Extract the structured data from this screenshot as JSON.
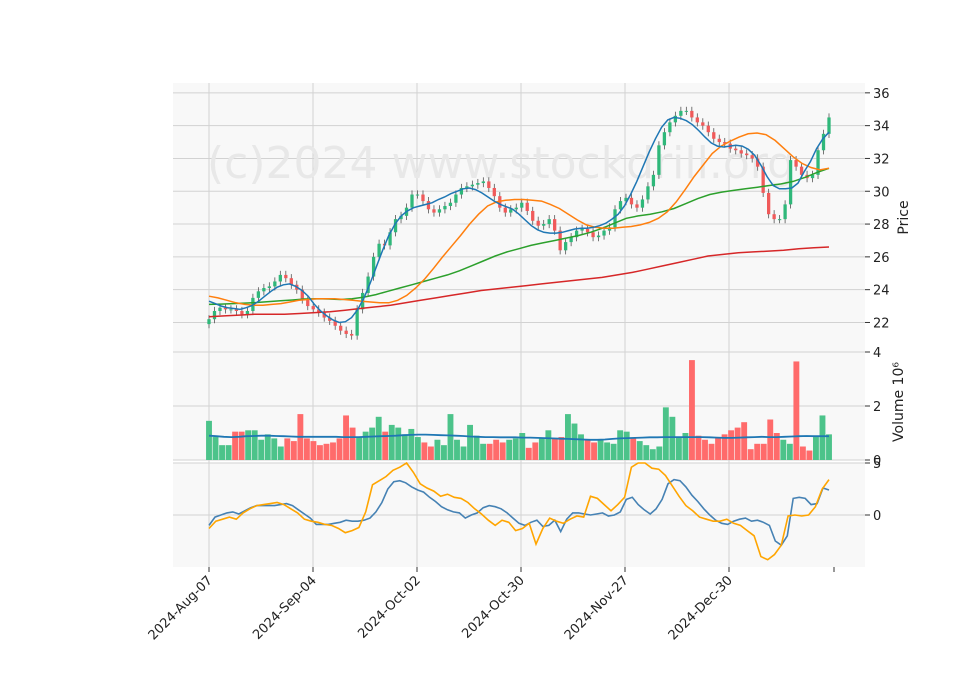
{
  "watermark": "(c)2024 www.stockdrill.org",
  "colors": {
    "panel_bg": "#f8f8f8",
    "grid": "#d2d2d2",
    "up": "#2fb87a",
    "down": "#f05a5a",
    "up_vol": "#4cc38a",
    "down_vol": "#ff6b6b",
    "ma_blue": "#1f77b4",
    "ma_orange": "#ff7f0e",
    "ma_green": "#2ca02c",
    "ma_red": "#d62728",
    "vol_avg": "#1f77b4",
    "osc_blue": "#4682b4",
    "osc_orange": "#ffa500"
  },
  "chart_data": {
    "type": "candlestick",
    "x_tick_labels": [
      "2024-Aug-07",
      "2024-Sep-04",
      "2024-Oct-02",
      "2024-Oct-30",
      "2024-Nov-27",
      "2024-Dec-30"
    ],
    "price_panel": {
      "ylabel": "Price",
      "yticks": [
        22,
        24,
        26,
        28,
        30,
        32,
        34,
        36
      ],
      "ylim": [
        20.2,
        36.6
      ],
      "close": [
        22.2,
        22.7,
        22.9,
        22.8,
        22.8,
        22.7,
        22.5,
        22.7,
        23.5,
        23.9,
        24.1,
        24.2,
        24.5,
        24.9,
        24.7,
        24.3,
        24.0,
        23.4,
        23.0,
        22.8,
        22.6,
        22.3,
        22.1,
        21.8,
        21.5,
        21.3,
        21.2,
        22.8,
        23.8,
        24.8,
        26.0,
        26.8,
        26.7,
        27.5,
        28.3,
        28.5,
        29.0,
        29.8,
        29.8,
        29.4,
        28.9,
        28.7,
        28.9,
        29.1,
        29.3,
        29.8,
        30.2,
        30.3,
        30.4,
        30.5,
        30.6,
        30.2,
        29.7,
        29.0,
        28.7,
        28.9,
        29.0,
        29.3,
        28.8,
        28.2,
        27.9,
        28.0,
        28.3,
        27.6,
        26.4,
        26.9,
        27.2,
        27.6,
        27.7,
        27.5,
        27.2,
        27.3,
        27.6,
        27.8,
        28.9,
        29.4,
        29.6,
        29.2,
        29.0,
        29.5,
        30.3,
        31.0,
        32.8,
        33.6,
        34.2,
        34.6,
        34.9,
        34.9,
        34.5,
        34.2,
        34.0,
        33.6,
        33.2,
        33.0,
        32.9,
        32.6,
        32.5,
        32.3,
        32.2,
        32.0,
        31.5,
        29.9,
        28.6,
        28.3,
        28.3,
        29.2,
        31.9,
        31.5,
        31.0,
        30.8,
        31.0,
        32.5,
        33.5,
        34.5
      ],
      "ma_blue": [
        23.3,
        23.15,
        23.0,
        22.9,
        22.85,
        22.8,
        22.9,
        23.05,
        23.3,
        23.6,
        23.9,
        24.15,
        24.3,
        24.35,
        24.2,
        23.95,
        23.6,
        23.1,
        22.7,
        22.4,
        22.15,
        22.0,
        22.05,
        22.3,
        22.8,
        23.5,
        24.4,
        25.4,
        26.4,
        27.3,
        28.0,
        28.5,
        28.8,
        29.0,
        29.1,
        29.2,
        29.3,
        29.5,
        29.65,
        29.85,
        30.0,
        30.15,
        30.2,
        30.1,
        29.9,
        29.65,
        29.4,
        29.2,
        29.05,
        28.9,
        28.6,
        28.25,
        27.9,
        27.65,
        27.5,
        27.45,
        27.45,
        27.5,
        27.6,
        27.7,
        27.75,
        27.75,
        27.8,
        27.9,
        28.05,
        28.3,
        28.6,
        29.1,
        29.8,
        30.6,
        31.5,
        32.4,
        33.2,
        33.9,
        34.35,
        34.5,
        34.45,
        34.3,
        34.05,
        33.7,
        33.3,
        32.95,
        32.75,
        32.7,
        32.75,
        32.8,
        32.75,
        32.55,
        32.2,
        31.6,
        30.9,
        30.35,
        30.15,
        30.15,
        30.2,
        30.5,
        31.2,
        31.8,
        32.6,
        33.2,
        33.6
      ],
      "ma_orange": [
        23.6,
        23.5,
        23.35,
        23.2,
        23.1,
        23.05,
        23.05,
        23.1,
        23.15,
        23.25,
        23.35,
        23.4,
        23.45,
        23.45,
        23.45,
        23.4,
        23.35,
        23.3,
        23.25,
        23.2,
        23.2,
        23.35,
        23.65,
        24.1,
        24.65,
        25.3,
        26.0,
        26.65,
        27.3,
        28.0,
        28.6,
        29.1,
        29.35,
        29.45,
        29.5,
        29.5,
        29.45,
        29.4,
        29.2,
        28.95,
        28.6,
        28.25,
        27.95,
        27.8,
        27.75,
        27.75,
        27.8,
        27.85,
        27.95,
        28.1,
        28.35,
        28.75,
        29.35,
        30.1,
        30.9,
        31.6,
        32.3,
        32.75,
        33.05,
        33.3,
        33.5,
        33.55,
        33.45,
        33.1,
        32.6,
        32.1,
        31.7,
        31.45,
        31.3,
        31.4
      ],
      "ma_green": [
        23.1,
        23.12,
        23.15,
        23.18,
        23.22,
        23.27,
        23.32,
        23.37,
        23.43,
        23.45,
        23.43,
        23.4,
        23.45,
        23.55,
        23.7,
        23.9,
        24.1,
        24.3,
        24.5,
        24.7,
        24.9,
        25.15,
        25.45,
        25.75,
        26.05,
        26.3,
        26.5,
        26.7,
        26.85,
        27.0,
        27.15,
        27.3,
        27.5,
        27.75,
        28.05,
        28.35,
        28.5,
        28.6,
        28.75,
        28.95,
        29.25,
        29.55,
        29.8,
        29.95,
        30.05,
        30.15,
        30.25,
        30.35,
        30.45,
        30.6,
        30.85,
        31.15,
        31.4
      ],
      "ma_red": [
        22.35,
        22.4,
        22.45,
        22.5,
        22.5,
        22.5,
        22.55,
        22.6,
        22.65,
        22.75,
        22.85,
        22.95,
        23.05,
        23.2,
        23.35,
        23.5,
        23.65,
        23.8,
        23.95,
        24.05,
        24.15,
        24.25,
        24.35,
        24.45,
        24.55,
        24.65,
        24.75,
        24.9,
        25.05,
        25.25,
        25.45,
        25.65,
        25.85,
        26.05,
        26.15,
        26.25,
        26.3,
        26.35,
        26.4,
        26.5,
        26.55,
        26.6
      ]
    },
    "volume_panel": {
      "ylabel": "Volume",
      "ylabel_exponent": "10⁶",
      "yticks": [
        0,
        2,
        4
      ],
      "ylim": [
        0,
        4
      ],
      "volume_m": [
        1.45,
        0.85,
        0.55,
        0.55,
        1.05,
        1.05,
        1.1,
        1.1,
        0.75,
        0.95,
        0.8,
        0.5,
        0.8,
        0.7,
        1.7,
        0.8,
        0.7,
        0.55,
        0.6,
        0.65,
        0.8,
        1.65,
        1.2,
        0.85,
        1.05,
        1.2,
        1.6,
        1.05,
        1.3,
        1.2,
        0.95,
        1.15,
        0.85,
        0.65,
        0.5,
        0.75,
        0.55,
        1.7,
        0.75,
        0.5,
        1.3,
        0.9,
        0.6,
        0.6,
        0.75,
        0.65,
        0.75,
        0.8,
        1.0,
        0.45,
        0.65,
        0.8,
        1.1,
        0.8,
        0.85,
        1.7,
        1.35,
        0.95,
        0.75,
        0.65,
        0.75,
        0.65,
        0.6,
        1.1,
        1.05,
        0.8,
        0.7,
        0.55,
        0.4,
        0.5,
        1.95,
        1.6,
        0.85,
        1.0,
        3.7,
        0.9,
        0.75,
        0.6,
        0.85,
        0.95,
        1.1,
        1.2,
        1.4,
        0.4,
        0.6,
        0.6,
        1.5,
        1.0,
        0.75,
        0.6,
        3.65,
        0.5,
        0.35,
        0.85,
        1.65,
        0.95
      ],
      "avg": [
        0.9,
        0.88,
        0.86,
        0.85,
        0.86,
        0.88,
        0.89,
        0.9,
        0.9,
        0.89,
        0.88,
        0.87,
        0.86,
        0.86,
        0.86,
        0.86,
        0.86,
        0.86,
        0.85,
        0.85,
        0.85,
        0.86,
        0.87,
        0.88,
        0.89,
        0.9,
        0.92,
        0.93,
        0.94,
        0.94,
        0.93,
        0.92,
        0.91,
        0.9,
        0.89,
        0.87,
        0.86,
        0.85,
        0.85,
        0.84,
        0.84,
        0.84,
        0.83,
        0.83,
        0.82,
        0.81,
        0.8,
        0.79,
        0.78,
        0.77,
        0.76,
        0.75,
        0.75,
        0.76,
        0.78,
        0.8,
        0.81,
        0.82,
        0.83,
        0.84,
        0.84,
        0.85,
        0.85,
        0.85,
        0.85,
        0.85,
        0.85,
        0.84,
        0.83,
        0.82,
        0.82,
        0.83,
        0.84,
        0.85,
        0.86,
        0.85,
        0.85,
        0.86,
        0.87,
        0.88,
        0.89,
        0.88,
        0.88,
        0.88
      ]
    },
    "oscillator_panel": {
      "yticks": [
        0,
        5
      ],
      "ylim": [
        -5,
        5
      ],
      "blue": [
        -1.0,
        -0.2,
        0.0,
        0.2,
        0.3,
        0.1,
        0.4,
        0.7,
        0.9,
        0.9,
        0.9,
        0.9,
        1.0,
        1.1,
        0.9,
        0.5,
        0.1,
        -0.3,
        -0.9,
        -0.9,
        -0.9,
        -0.8,
        -0.7,
        -0.5,
        -0.6,
        -0.6,
        -0.5,
        -0.3,
        0.3,
        1.2,
        2.5,
        3.2,
        3.3,
        3.1,
        2.7,
        2.4,
        2.2,
        1.7,
        1.3,
        0.8,
        0.5,
        0.3,
        0.2,
        -0.3,
        0.0,
        0.2,
        0.7,
        0.9,
        0.8,
        0.6,
        0.2,
        -0.3,
        -0.8,
        -1.0,
        -0.7,
        -0.5,
        -1.1,
        -1.0,
        -0.5,
        -1.6,
        -0.4,
        0.2,
        0.2,
        0.1,
        0.0,
        0.1,
        0.2,
        -0.1,
        0.0,
        0.3,
        1.5,
        1.7,
        1.0,
        0.5,
        0.1,
        0.6,
        1.5,
        3.0,
        3.4,
        3.3,
        2.7,
        1.9,
        1.3,
        0.6,
        0.0,
        -0.5,
        -0.8,
        -0.9,
        -0.6,
        -0.4,
        -0.3,
        -0.6,
        -0.5,
        -0.7,
        -1.0,
        -2.5,
        -2.9,
        -2.0,
        1.6,
        1.7,
        1.6,
        1.0,
        1.1,
        2.6,
        2.4
      ],
      "orange": [
        -1.3,
        -0.6,
        -0.4,
        -0.2,
        -0.4,
        0.2,
        0.6,
        0.9,
        1.0,
        1.1,
        1.2,
        1.0,
        0.6,
        0.2,
        -0.4,
        -0.6,
        -0.7,
        -0.9,
        -1.0,
        -1.3,
        -1.7,
        -1.5,
        -1.2,
        0.3,
        2.9,
        3.3,
        3.7,
        4.3,
        4.6,
        5.0,
        4.1,
        3.0,
        2.6,
        2.3,
        1.8,
        2.0,
        1.7,
        1.6,
        1.2,
        0.6,
        0.1,
        -0.5,
        -1.0,
        -0.5,
        -0.7,
        -1.5,
        -1.3,
        -0.8,
        -2.8,
        -1.3,
        -0.3,
        -0.6,
        -0.8,
        -0.4,
        -0.1,
        -0.2,
        1.8,
        1.6,
        1.0,
        0.4,
        1.0,
        1.7,
        4.6,
        5.0,
        5.0,
        4.5,
        4.4,
        3.8,
        2.8,
        1.8,
        0.9,
        0.4,
        -0.2,
        -0.4,
        -0.6,
        -0.6,
        -0.4,
        -0.8,
        -1.0,
        -1.5,
        -2.0,
        -4.0,
        -4.3,
        -3.8,
        -2.9,
        -0.1,
        0.0,
        -0.1,
        0.0,
        0.8,
        2.5,
        3.4
      ]
    }
  }
}
